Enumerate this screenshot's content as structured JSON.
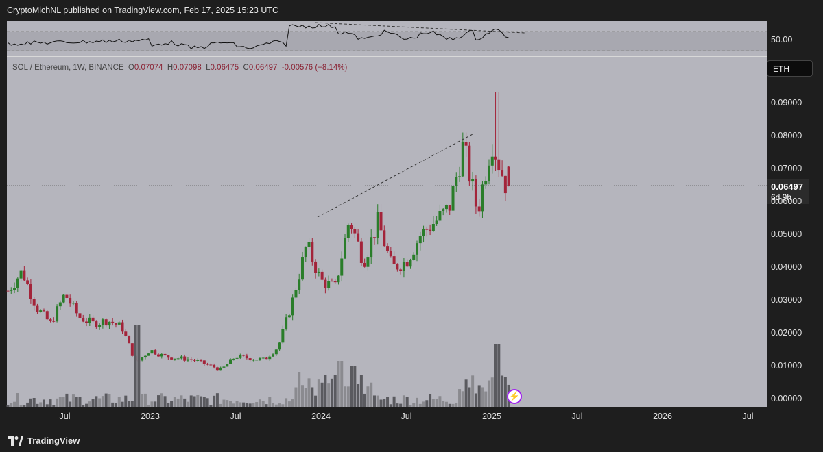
{
  "header": {
    "publish_text": "CryptoMichNL published on TradingView.com, Feb 17, 2025 15:23 UTC"
  },
  "legend": {
    "symbol": "SOL / Ethereum, 1W, BINANCE",
    "open_label": "O",
    "open": "0.07074",
    "high_label": "H",
    "high": "0.07098",
    "low_label": "L",
    "low": "0.06475",
    "close_label": "C",
    "close": "0.06497",
    "change": "-0.00576 (−8.14%)"
  },
  "scale_button": "ETH",
  "current_price": {
    "value": "0.06497",
    "countdown": "6d 9h"
  },
  "rsi": {
    "level_label": "50.00"
  },
  "footer": {
    "brand": "TradingView"
  },
  "icons": {
    "flag": "bolt-icon",
    "brand": "tradingview-logo-icon"
  },
  "colors": {
    "up": "#2a7d2a",
    "down": "#a3243a",
    "background": "#b5b5bd",
    "volume_up": "#8a8a8f",
    "volume_down": "#5a5a5f"
  },
  "chart_data": {
    "type": "candlestick",
    "pair": "SOL/ETH",
    "interval": "1W",
    "y_ticks": [
      "0.09000",
      "0.08000",
      "0.07000",
      "0.06000",
      "0.05000",
      "0.04000",
      "0.03000",
      "0.02000",
      "0.01000",
      "0.00000"
    ],
    "x_ticks": [
      "Jul",
      "2023",
      "Jul",
      "2024",
      "Jul",
      "2025",
      "Jul",
      "2026",
      "Jul"
    ],
    "ylim": [
      0,
      0.1
    ],
    "last_close": 0.06497,
    "anchors": [
      {
        "date": "2022-03",
        "close": 0.033
      },
      {
        "date": "2022-04",
        "close": 0.039
      },
      {
        "date": "2022-05",
        "close": 0.028
      },
      {
        "date": "2022-06",
        "close": 0.023
      },
      {
        "date": "2022-07",
        "close": 0.032
      },
      {
        "date": "2022-08",
        "close": 0.025
      },
      {
        "date": "2022-09",
        "close": 0.023
      },
      {
        "date": "2022-10",
        "close": 0.024
      },
      {
        "date": "2022-11",
        "close": 0.022
      },
      {
        "date": "2022-12",
        "close": 0.011
      },
      {
        "date": "2023-01",
        "close": 0.015
      },
      {
        "date": "2023-02",
        "close": 0.013
      },
      {
        "date": "2023-04",
        "close": 0.012
      },
      {
        "date": "2023-06",
        "close": 0.009
      },
      {
        "date": "2023-07",
        "close": 0.013
      },
      {
        "date": "2023-09",
        "close": 0.012
      },
      {
        "date": "2023-10",
        "close": 0.016
      },
      {
        "date": "2023-11",
        "close": 0.03
      },
      {
        "date": "2023-12",
        "close": 0.047
      },
      {
        "date": "2024-01",
        "close": 0.036
      },
      {
        "date": "2024-02",
        "close": 0.034
      },
      {
        "date": "2024-03",
        "close": 0.055
      },
      {
        "date": "2024-04",
        "close": 0.042
      },
      {
        "date": "2024-05",
        "close": 0.054
      },
      {
        "date": "2024-06",
        "close": 0.04
      },
      {
        "date": "2024-07",
        "close": 0.042
      },
      {
        "date": "2024-08",
        "close": 0.05
      },
      {
        "date": "2024-09",
        "close": 0.054
      },
      {
        "date": "2024-10",
        "close": 0.058
      },
      {
        "date": "2024-11",
        "close": 0.077
      },
      {
        "date": "2024-12",
        "close": 0.057
      },
      {
        "date": "2025-01",
        "close": 0.079
      },
      {
        "date": "2025-02",
        "close": 0.06497
      }
    ],
    "annotations": [
      "dashed trendline connecting rising highs (price)",
      "dashed trendline connecting falling highs (RSI) - bearish divergence"
    ],
    "volume_spikes": [
      "2024-02",
      "2024-06",
      "2025-01"
    ]
  }
}
